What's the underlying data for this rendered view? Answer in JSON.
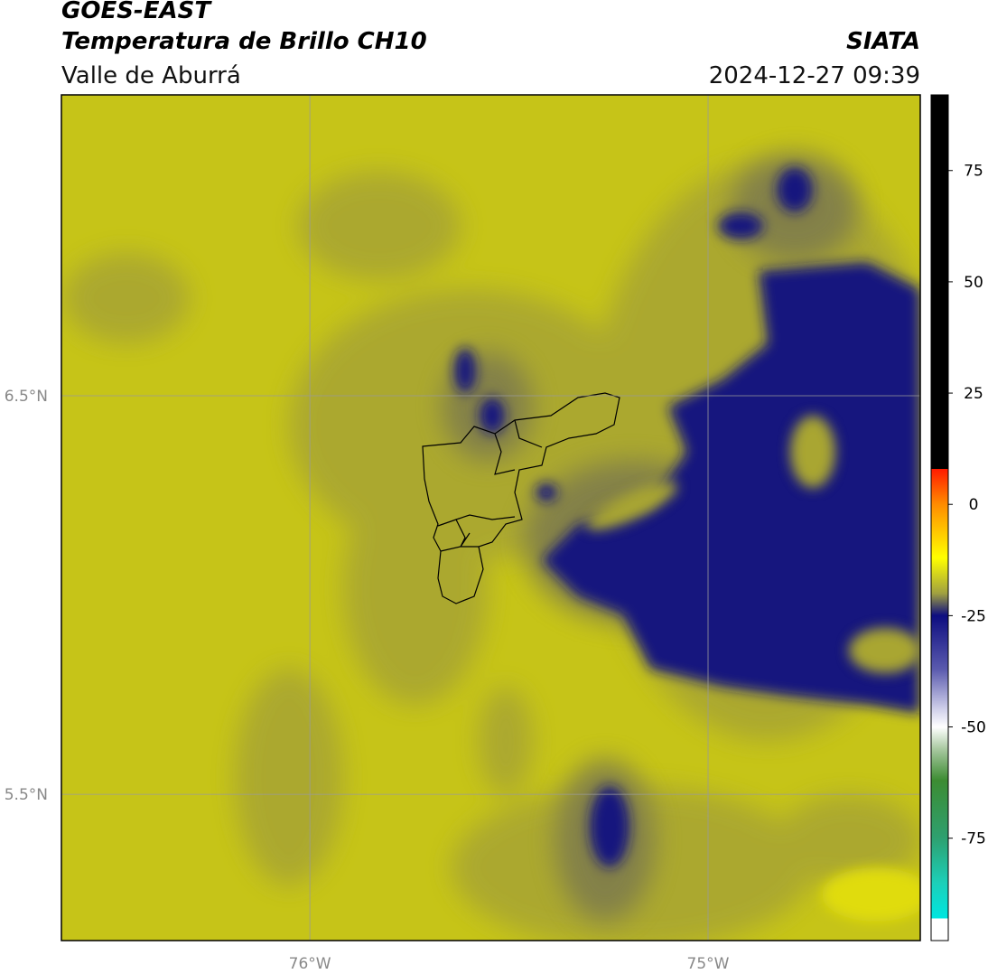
{
  "header": {
    "satellite": "GOES-EAST",
    "product": "Temperatura de Brillo CH10",
    "region": "Valle de Aburrá",
    "agency": "SIATA",
    "timestamp": "2024-12-27 09:39"
  },
  "map": {
    "lonlim": [
      -76.624,
      -74.467
    ],
    "latlim": [
      5.133,
      7.255
    ],
    "lon_ticks": [
      {
        "value": -76,
        "label": "76°W"
      },
      {
        "value": -75,
        "label": "75°W"
      }
    ],
    "lat_ticks": [
      {
        "value": 6.5,
        "label": "6.5°N"
      },
      {
        "value": 5.5,
        "label": "5.5°N"
      }
    ],
    "grid": true
  },
  "colorbar": {
    "range": [
      -98,
      92
    ],
    "ticks": [
      75,
      50,
      25,
      0,
      -25,
      -50,
      -75
    ],
    "stops": [
      {
        "value": 92,
        "color": "#000000"
      },
      {
        "value": 8,
        "color": "#000000"
      },
      {
        "value": 8,
        "color": "#ff1a00"
      },
      {
        "value": 0,
        "color": "#ff8c00"
      },
      {
        "value": -12,
        "color": "#ffff00"
      },
      {
        "value": -20,
        "color": "#a0a040"
      },
      {
        "value": -25,
        "color": "#0d0d80"
      },
      {
        "value": -37,
        "color": "#5a5aae"
      },
      {
        "value": -46,
        "color": "#d0d0ea"
      },
      {
        "value": -50,
        "color": "#ffffff"
      },
      {
        "value": -55,
        "color": "#a8c8a0"
      },
      {
        "value": -62,
        "color": "#3c8c32"
      },
      {
        "value": -75,
        "color": "#2ea070"
      },
      {
        "value": -85,
        "color": "#1ccfb8"
      },
      {
        "value": -93,
        "color": "#00e6e0"
      },
      {
        "value": -93,
        "color": "#ffffff"
      },
      {
        "value": -98,
        "color": "#ffffff"
      }
    ]
  }
}
